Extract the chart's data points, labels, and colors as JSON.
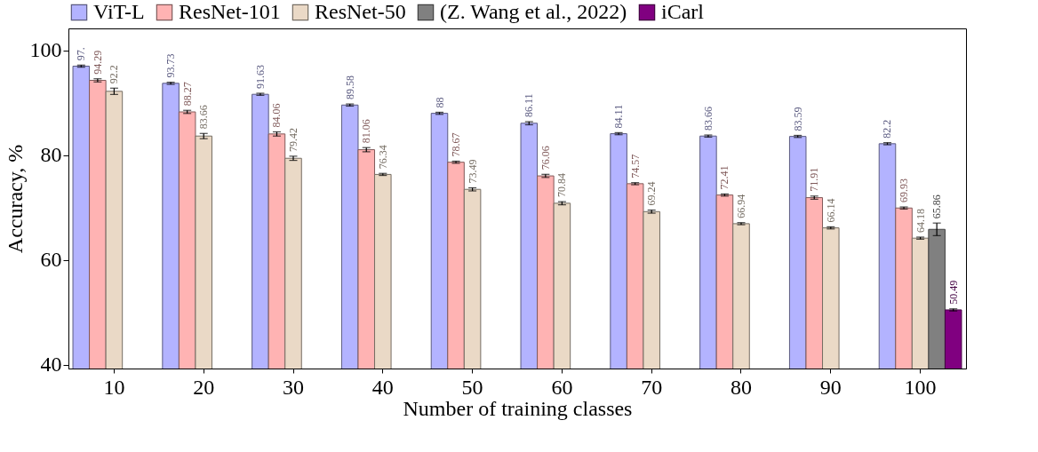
{
  "chart_data": {
    "type": "bar",
    "xlabel": "Number of training classes",
    "ylabel": "Accuracy, %",
    "categories": [
      "10",
      "20",
      "30",
      "40",
      "50",
      "60",
      "70",
      "80",
      "90",
      "100"
    ],
    "series": [
      {
        "name": "ViT-L",
        "color": "#b3b3ff",
        "values": [
          97,
          93.73,
          91.63,
          89.58,
          88,
          86.11,
          84.11,
          83.66,
          83.59,
          82.2
        ],
        "errors": [
          0.2,
          0.2,
          0.2,
          0.2,
          0.2,
          0.3,
          0.2,
          0.2,
          0.2,
          0.2
        ],
        "value_labels": [
          "97.",
          "93.73",
          "91.63",
          "89.58",
          "88",
          "86.11",
          "84.11",
          "83.66",
          "83.59",
          "82.2"
        ]
      },
      {
        "name": "ResNet-101",
        "color": "#ffb3b3",
        "values": [
          94.29,
          88.27,
          84.06,
          81.06,
          78.67,
          76.06,
          74.57,
          72.41,
          71.91,
          69.93
        ],
        "errors": [
          0.3,
          0.3,
          0.4,
          0.4,
          0.2,
          0.3,
          0.2,
          0.2,
          0.3,
          0.2
        ],
        "value_labels": [
          "94.29",
          "88.27",
          "84.06",
          "81.06",
          "78.67",
          "76.06",
          "74.57",
          "72.41",
          "71.91",
          "69.93"
        ]
      },
      {
        "name": "ResNet-50",
        "color": "#ead9c6",
        "values": [
          92.2,
          83.66,
          79.42,
          76.34,
          73.49,
          70.84,
          69.24,
          66.94,
          66.14,
          64.18
        ],
        "errors": [
          0.6,
          0.5,
          0.4,
          0.2,
          0.3,
          0.3,
          0.3,
          0.2,
          0.2,
          0.2
        ],
        "value_labels": [
          "92.2",
          "83.66",
          "79.42",
          "76.34",
          "73.49",
          "70.84",
          "69.24",
          "66.94",
          "66.14",
          "64.18"
        ]
      },
      {
        "name": "(Z. Wang et al., 2022)",
        "color": "#808080",
        "values": [
          null,
          null,
          null,
          null,
          null,
          null,
          null,
          null,
          null,
          65.86
        ],
        "errors": [
          null,
          null,
          null,
          null,
          null,
          null,
          null,
          null,
          null,
          1.2
        ],
        "value_labels": [
          null,
          null,
          null,
          null,
          null,
          null,
          null,
          null,
          null,
          "65.86"
        ]
      },
      {
        "name": "iCarl",
        "color": "#800080",
        "values": [
          null,
          null,
          null,
          null,
          null,
          null,
          null,
          null,
          null,
          50.49
        ],
        "errors": [
          null,
          null,
          null,
          null,
          null,
          null,
          null,
          null,
          null,
          0.2
        ],
        "value_labels": [
          null,
          null,
          null,
          null,
          null,
          null,
          null,
          null,
          null,
          "50.49"
        ]
      }
    ],
    "ylim": [
      39.3,
      104.2
    ],
    "yticks": [
      40,
      60,
      80,
      100
    ],
    "legend": "top"
  }
}
